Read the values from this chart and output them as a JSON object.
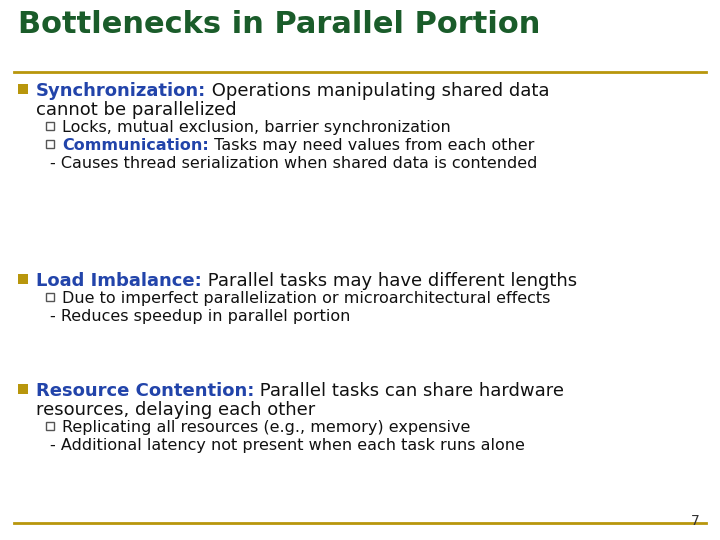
{
  "title": "Bottlenecks in Parallel Portion",
  "title_color": "#1a5c2a",
  "title_fontsize": 22,
  "bg_color": "#ffffff",
  "rule_color": "#b8960c",
  "bullet_color": "#b8960c",
  "page_number": "7",
  "sections": [
    {
      "bullet_keyword": "Synchronization:",
      "bullet_keyword_color": "#2244aa",
      "bullet_text": " Operations manipulating shared data\ncannot be parallelized",
      "bullet_text_color": "#111111",
      "sub_items": [
        {
          "type": "square",
          "keyword": "",
          "keyword_color": "#111111",
          "text": "Locks, mutual exclusion, barrier synchronization",
          "text_color": "#111111"
        },
        {
          "type": "square",
          "keyword": "Communication:",
          "keyword_color": "#2244aa",
          "text": " Tasks may need values from each other",
          "text_color": "#111111"
        },
        {
          "type": "dash",
          "keyword": "",
          "keyword_color": "#111111",
          "text": "- Causes thread serialization when shared data is contended",
          "text_color": "#111111"
        }
      ]
    },
    {
      "bullet_keyword": "Load Imbalance:",
      "bullet_keyword_color": "#2244aa",
      "bullet_text": " Parallel tasks may have different lengths",
      "bullet_text_color": "#111111",
      "sub_items": [
        {
          "type": "square",
          "keyword": "",
          "keyword_color": "#111111",
          "text": "Due to imperfect parallelization or microarchitectural effects",
          "text_color": "#111111"
        },
        {
          "type": "dash",
          "keyword": "",
          "keyword_color": "#111111",
          "text": "- Reduces speedup in parallel portion",
          "text_color": "#111111"
        }
      ]
    },
    {
      "bullet_keyword": "Resource Contention:",
      "bullet_keyword_color": "#2244aa",
      "bullet_text": " Parallel tasks can share hardware\nresources, delaying each other",
      "bullet_text_color": "#111111",
      "sub_items": [
        {
          "type": "square",
          "keyword": "",
          "keyword_color": "#111111",
          "text": "Replicating all resources (e.g., memory) expensive",
          "text_color": "#111111"
        },
        {
          "type": "dash",
          "keyword": "",
          "keyword_color": "#111111",
          "text": "- Additional latency not present when each task runs alone",
          "text_color": "#111111"
        }
      ]
    }
  ]
}
